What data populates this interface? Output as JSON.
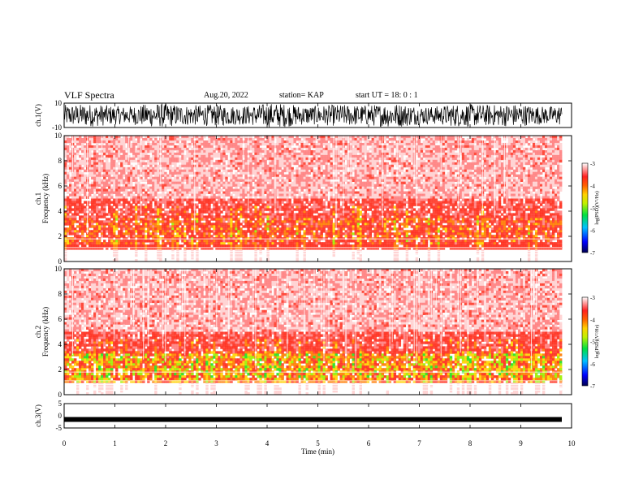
{
  "header": {
    "title": "VLF Spectra",
    "date": "Aug.20, 2022",
    "station": "station= KAP",
    "start": "start  UT =   18: 0  : 1"
  },
  "chart_data": [
    {
      "type": "line",
      "panel": "ch1-waveform",
      "ylabel": "ch.1(V)",
      "ylim": [
        -10,
        10
      ],
      "yticks": [
        {
          "value": 10,
          "label": "10"
        },
        {
          "value": -10,
          "label": "-10"
        }
      ],
      "xlim": [
        0,
        10
      ],
      "note": "dense oscillating signal spanning approximately -9 to 10"
    },
    {
      "type": "heatmap",
      "panel": "ch1-spectrogram",
      "ylabel": "ch.1\nFrequency (kHz)",
      "ylabel_lines": [
        "ch.1",
        "Frequency  (kHz)"
      ],
      "ylim": [
        0,
        10
      ],
      "yticks": [
        {
          "value": 0,
          "label": "0"
        },
        {
          "value": 2,
          "label": "2"
        },
        {
          "value": 4,
          "label": "4"
        },
        {
          "value": 6,
          "label": "6"
        },
        {
          "value": 8,
          "label": "8"
        },
        {
          "value": 10,
          "label": "10"
        }
      ],
      "xlim": [
        0,
        10
      ],
      "colorbar": {
        "label": "log(PSD)(V²/Hz)",
        "range": [
          -7,
          -3
        ],
        "ticks": [
          {
            "value": -3,
            "label": "-3"
          },
          {
            "value": -4,
            "label": "-4"
          },
          {
            "value": -5,
            "label": "-5"
          },
          {
            "value": -6,
            "label": "-6"
          },
          {
            "value": -7,
            "label": "-7"
          }
        ]
      }
    },
    {
      "type": "heatmap",
      "panel": "ch2-spectrogram",
      "ylabel_lines": [
        "ch.2",
        "Frequency  (kHz)"
      ],
      "ylim": [
        0,
        10
      ],
      "yticks": [
        {
          "value": 0,
          "label": "0"
        },
        {
          "value": 2,
          "label": "2"
        },
        {
          "value": 4,
          "label": "4"
        },
        {
          "value": 6,
          "label": "6"
        },
        {
          "value": 8,
          "label": "8"
        },
        {
          "value": 10,
          "label": "10"
        }
      ],
      "xlim": [
        0,
        10
      ],
      "colorbar": {
        "label": "log(PSD)(V²/Hz)",
        "range": [
          -7,
          -3
        ],
        "ticks": [
          {
            "value": -3,
            "label": "-3"
          },
          {
            "value": -4,
            "label": "-4"
          },
          {
            "value": -5,
            "label": "-5"
          },
          {
            "value": -6,
            "label": "-6"
          },
          {
            "value": -7,
            "label": "-7"
          }
        ]
      }
    },
    {
      "type": "line",
      "panel": "ch3-waveform",
      "ylabel": "ch.3(V)",
      "ylim": [
        -5,
        5
      ],
      "yticks": [
        {
          "value": 5,
          "label": "5"
        },
        {
          "value": 0,
          "label": "0"
        },
        {
          "value": -5,
          "label": "-5"
        }
      ],
      "xlim": [
        0,
        10
      ],
      "level": -1.5,
      "xlabel": "Time  (min)",
      "xticks": [
        {
          "value": 0,
          "label": "0"
        },
        {
          "value": 1,
          "label": "1"
        },
        {
          "value": 2,
          "label": "2"
        },
        {
          "value": 3,
          "label": "3"
        },
        {
          "value": 4,
          "label": "4"
        },
        {
          "value": 5,
          "label": "5"
        },
        {
          "value": 6,
          "label": "6"
        },
        {
          "value": 7,
          "label": "7"
        },
        {
          "value": 8,
          "label": "8"
        },
        {
          "value": 9,
          "label": "9"
        },
        {
          "value": 10,
          "label": "10"
        }
      ]
    }
  ]
}
